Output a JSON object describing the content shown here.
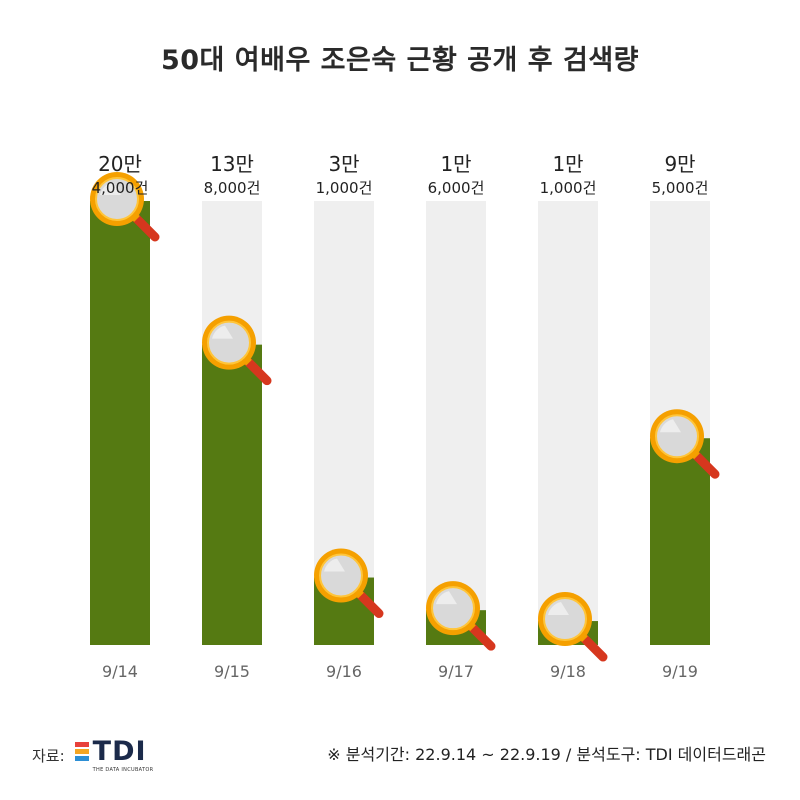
{
  "title": "50대 여배우 조은숙 근황 공개 후 검색량",
  "chart_data": {
    "type": "bar",
    "categories": [
      "9/14",
      "9/15",
      "9/16",
      "9/17",
      "9/18",
      "9/19"
    ],
    "values": [
      204000,
      138000,
      31000,
      16000,
      11000,
      95000
    ],
    "data_labels": [
      {
        "main": "20만",
        "sub": "4,000건"
      },
      {
        "main": "13만",
        "sub": "8,000건"
      },
      {
        "main": "3만",
        "sub": "1,000건"
      },
      {
        "main": "1만",
        "sub": "6,000건"
      },
      {
        "main": "1만",
        "sub": "1,000건"
      },
      {
        "main": "9만",
        "sub": "5,000건"
      }
    ],
    "ylim": [
      0,
      204000
    ],
    "grid": false,
    "bar_color": "#557A12",
    "track_color": "#EFEFEF",
    "icon": "magnifier-icon"
  },
  "footer": {
    "source_label": "자료:",
    "logo_text": "TDI",
    "logo_sub": "THE DATA INCUBATOR",
    "logo_colors": [
      "#E8413C",
      "#F5A623",
      "#2D8FD5"
    ],
    "note": "※ 분석기간: 22.9.14 ~ 22.9.19 / 분석도구: TDI 데이터드래곤"
  }
}
